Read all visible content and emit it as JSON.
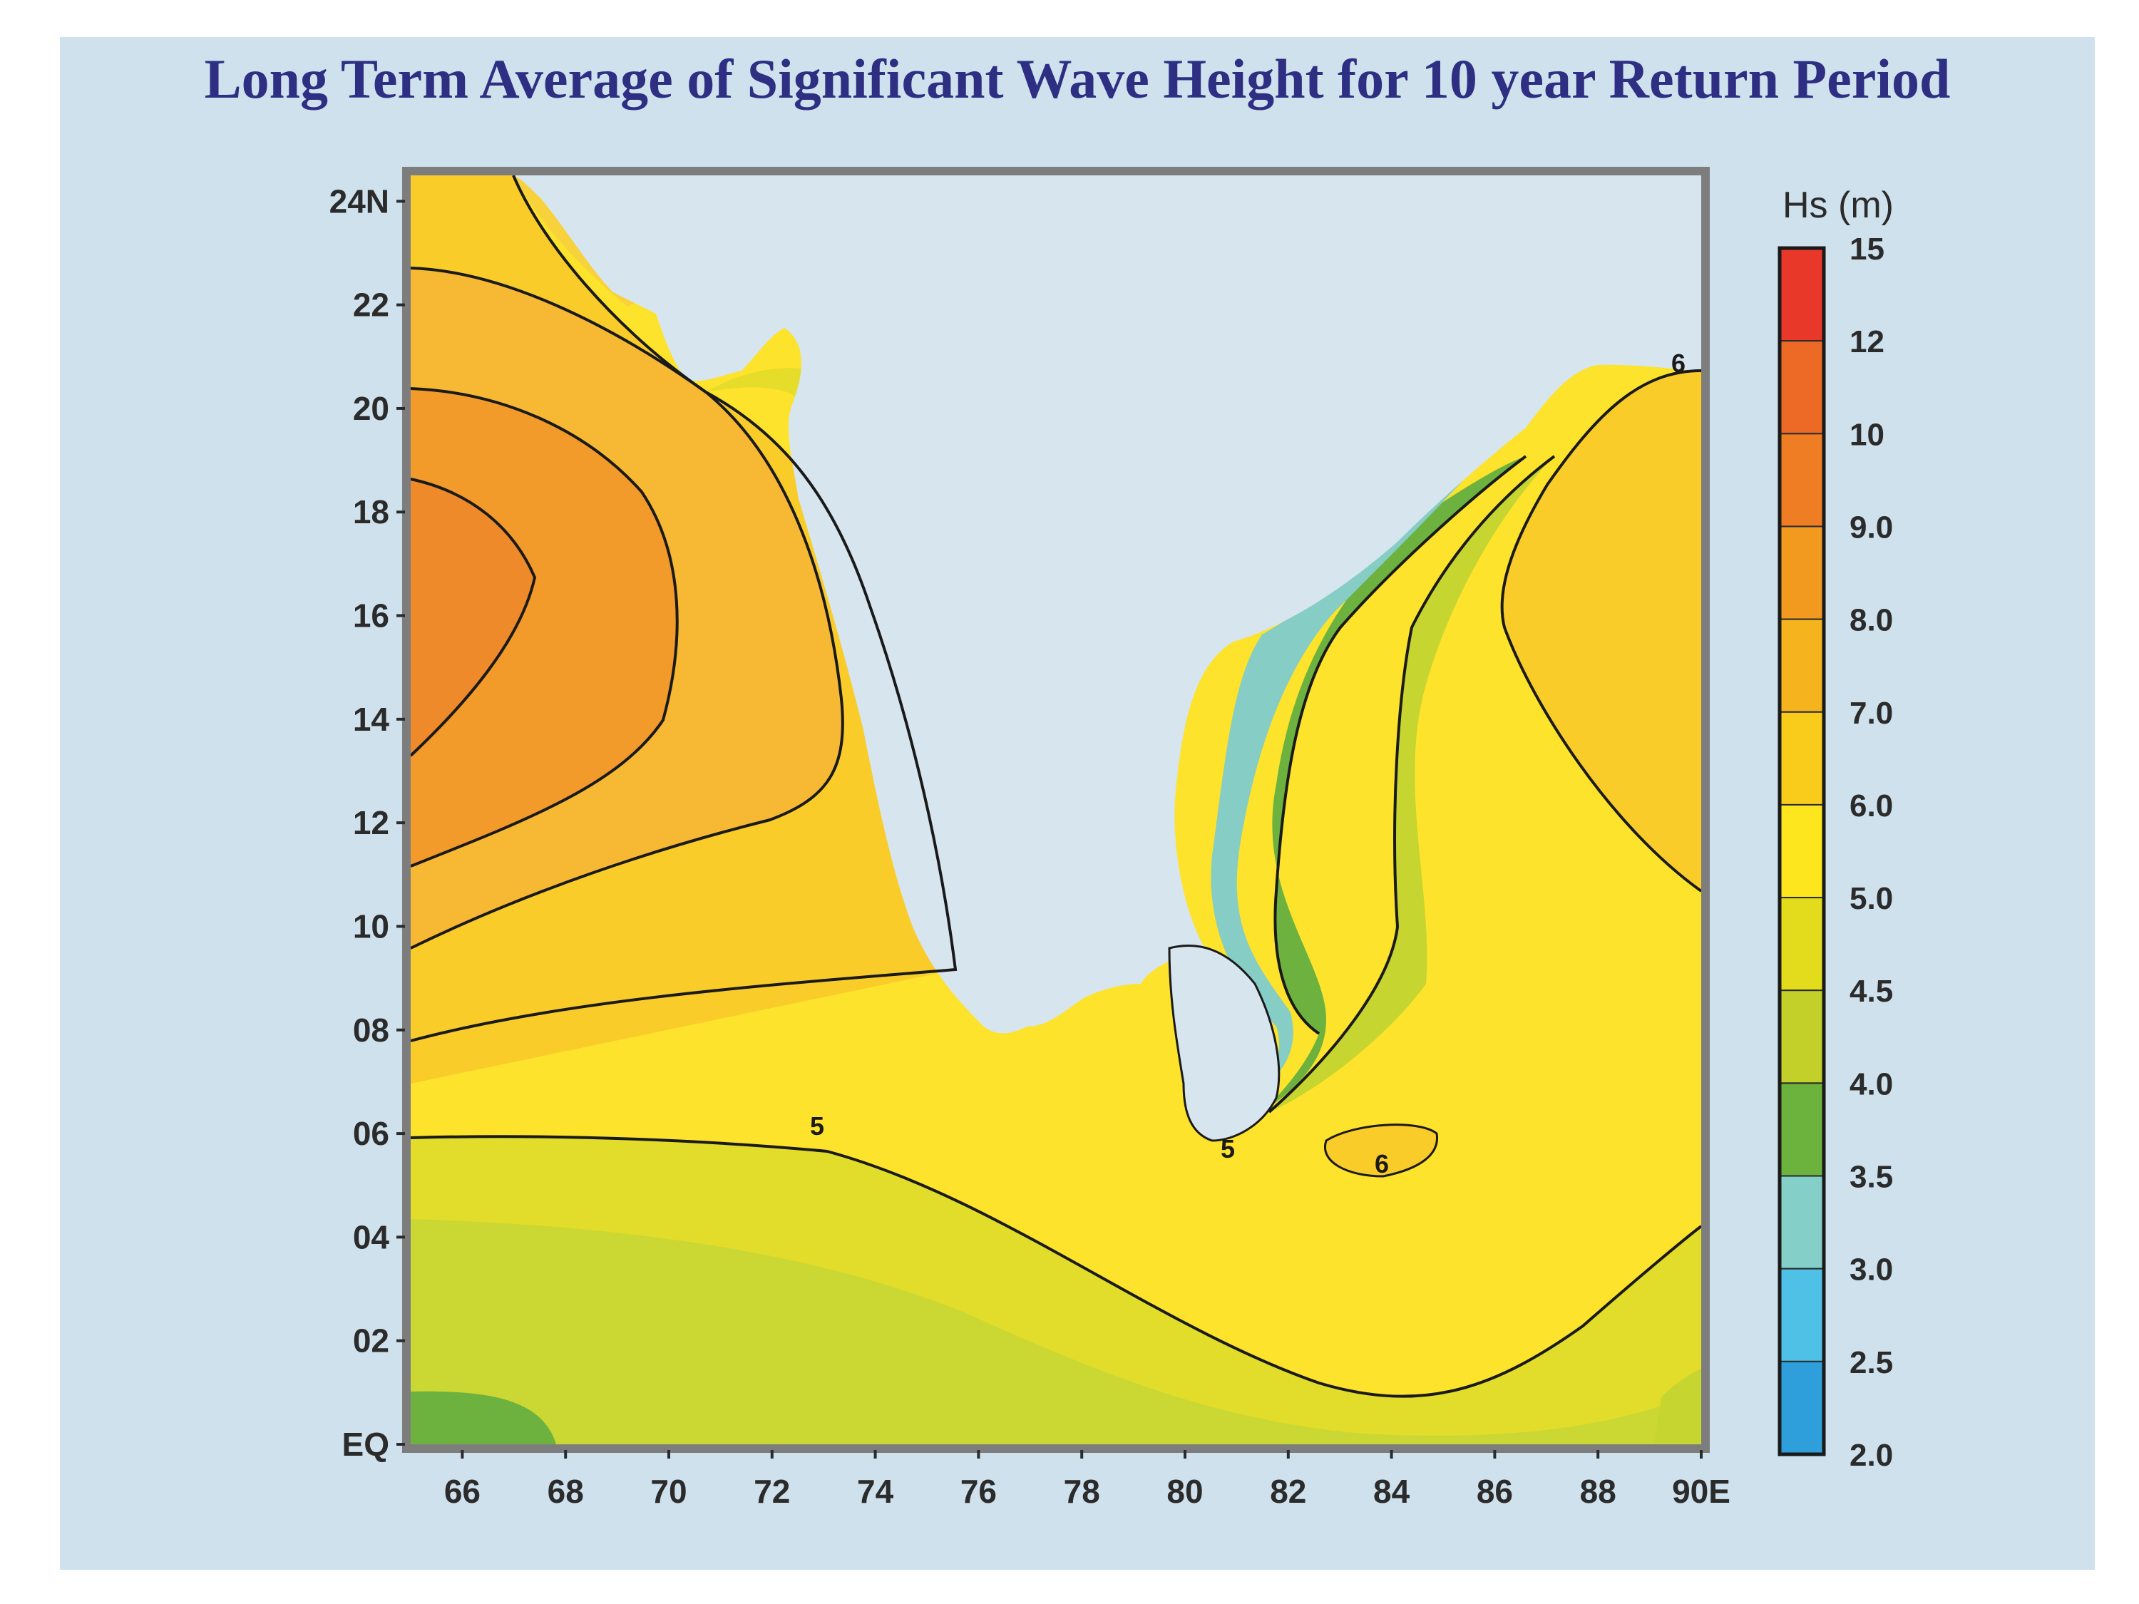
{
  "title": "Long Term Average of Significant Wave Height for 10 year Return Period",
  "map": {
    "lat_ticks": [
      "24N",
      "22",
      "20",
      "18",
      "16",
      "14",
      "12",
      "10",
      "08",
      "06",
      "04",
      "02",
      "EQ"
    ],
    "lon_ticks": [
      "66",
      "68",
      "70",
      "72",
      "74",
      "76",
      "78",
      "80",
      "82",
      "84",
      "86",
      "88",
      "90E"
    ],
    "lat_range": [
      0,
      24.5
    ],
    "lon_range": [
      65,
      90
    ],
    "contour_labels": [
      "5",
      "5",
      "6",
      "6"
    ]
  },
  "legend": {
    "title": "Hs (m)",
    "levels": [
      "15",
      "12",
      "10",
      "9.0",
      "8.0",
      "7.0",
      "6.0",
      "5.0",
      "4.5",
      "4.0",
      "3.5",
      "3.0",
      "2.5",
      "2.0"
    ],
    "colors": [
      "#e8382a",
      "#ec6a26",
      "#ee7d24",
      "#f29a20",
      "#f5b41e",
      "#f9cc1c",
      "#fde61e",
      "#e2dc1c",
      "#c3d02a",
      "#6cb33e",
      "#85cfc9",
      "#4fc1e6",
      "#2f9fdc"
    ]
  },
  "land_color": "#d7e5ee",
  "ocean_colors": {
    "orange_core": "#ef8a2a",
    "orange": "#f4a532",
    "light_orange": "#f7c035",
    "yellow": "#fde32b",
    "pale_yellow": "#fbe938",
    "yellow_green": "#dede2a",
    "green_yellow": "#c6d530",
    "green": "#6db23e",
    "teal": "#86cdc5",
    "blue": "#4fb7e0"
  }
}
